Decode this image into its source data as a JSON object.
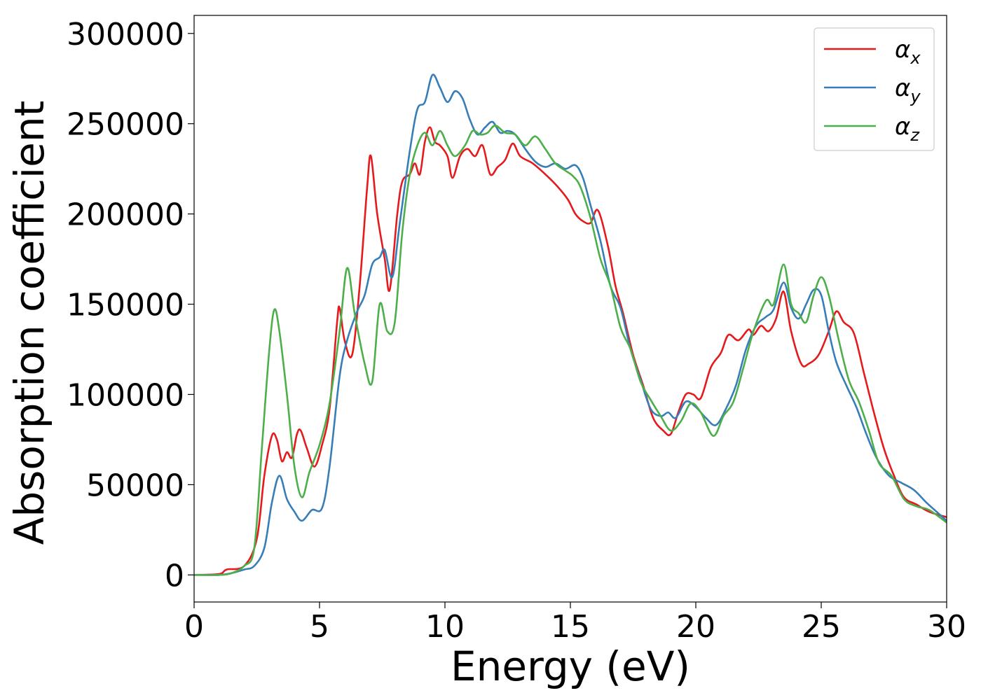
{
  "chart_data": {
    "type": "line",
    "xlabel": "Energy (eV)",
    "ylabel": "Absorption coefficient",
    "xlim": [
      0,
      30
    ],
    "ylim": [
      -15000,
      310000
    ],
    "x_ticks": [
      0,
      5,
      10,
      15,
      20,
      25,
      30
    ],
    "y_ticks": [
      0,
      50000,
      100000,
      150000,
      200000,
      250000,
      300000
    ],
    "x_tick_labels": [
      "0",
      "5",
      "10",
      "15",
      "20",
      "25",
      "30"
    ],
    "y_tick_labels": [
      "0",
      "50000",
      "100000",
      "150000",
      "200000",
      "250000",
      "300000"
    ],
    "grid": false,
    "legend_position": "top-right",
    "series": [
      {
        "name": "α_x",
        "legend_base": "α",
        "legend_sub": "x",
        "color": "#e41a1c",
        "points": [
          [
            0,
            0
          ],
          [
            1,
            500
          ],
          [
            1.3,
            3000
          ],
          [
            2,
            5000
          ],
          [
            2.5,
            20000
          ],
          [
            2.8,
            55000
          ],
          [
            3.1,
            77000
          ],
          [
            3.3,
            75000
          ],
          [
            3.5,
            63000
          ],
          [
            3.7,
            68000
          ],
          [
            3.9,
            65000
          ],
          [
            4.1,
            78000
          ],
          [
            4.25,
            80000
          ],
          [
            4.5,
            70000
          ],
          [
            4.8,
            60000
          ],
          [
            5.1,
            72000
          ],
          [
            5.4,
            92000
          ],
          [
            5.7,
            140000
          ],
          [
            5.8,
            148000
          ],
          [
            6.0,
            130000
          ],
          [
            6.3,
            122000
          ],
          [
            6.6,
            160000
          ],
          [
            6.9,
            215000
          ],
          [
            7.05,
            232000
          ],
          [
            7.3,
            200000
          ],
          [
            7.6,
            175000
          ],
          [
            7.8,
            158000
          ],
          [
            8.1,
            200000
          ],
          [
            8.3,
            218000
          ],
          [
            8.6,
            222000
          ],
          [
            8.8,
            228000
          ],
          [
            9.0,
            222000
          ],
          [
            9.2,
            240000
          ],
          [
            9.4,
            248000
          ],
          [
            9.6,
            240000
          ],
          [
            9.8,
            238000
          ],
          [
            10.1,
            232000
          ],
          [
            10.3,
            220000
          ],
          [
            10.6,
            232000
          ],
          [
            10.9,
            236000
          ],
          [
            11.2,
            232000
          ],
          [
            11.5,
            238000
          ],
          [
            11.8,
            222000
          ],
          [
            12.1,
            226000
          ],
          [
            12.4,
            230000
          ],
          [
            12.7,
            239000
          ],
          [
            13.0,
            232000
          ],
          [
            13.5,
            228000
          ],
          [
            14.0,
            222000
          ],
          [
            14.5,
            215000
          ],
          [
            14.9,
            208000
          ],
          [
            15.2,
            200000
          ],
          [
            15.5,
            196000
          ],
          [
            15.8,
            195000
          ],
          [
            16.1,
            202000
          ],
          [
            16.5,
            182000
          ],
          [
            16.8,
            160000
          ],
          [
            17.1,
            145000
          ],
          [
            17.5,
            122000
          ],
          [
            17.9,
            105000
          ],
          [
            18.3,
            87000
          ],
          [
            18.7,
            80000
          ],
          [
            19.0,
            78000
          ],
          [
            19.3,
            90000
          ],
          [
            19.6,
            100000
          ],
          [
            19.9,
            100000
          ],
          [
            20.2,
            98000
          ],
          [
            20.6,
            115000
          ],
          [
            21.0,
            123000
          ],
          [
            21.3,
            133000
          ],
          [
            21.7,
            130000
          ],
          [
            22.1,
            136000
          ],
          [
            22.3,
            133000
          ],
          [
            22.6,
            138000
          ],
          [
            22.9,
            135000
          ],
          [
            23.2,
            142000
          ],
          [
            23.5,
            157000
          ],
          [
            23.8,
            135000
          ],
          [
            24.2,
            117000
          ],
          [
            24.5,
            117000
          ],
          [
            24.9,
            122000
          ],
          [
            25.3,
            135000
          ],
          [
            25.6,
            146000
          ],
          [
            25.9,
            140000
          ],
          [
            26.3,
            134000
          ],
          [
            26.7,
            112000
          ],
          [
            27.1,
            90000
          ],
          [
            27.5,
            70000
          ],
          [
            27.9,
            55000
          ],
          [
            28.3,
            43000
          ],
          [
            28.8,
            39000
          ],
          [
            29.3,
            35000
          ],
          [
            30,
            32000
          ]
        ]
      },
      {
        "name": "α_y",
        "legend_base": "α",
        "legend_sub": "y",
        "color": "#377eb8",
        "points": [
          [
            0,
            0
          ],
          [
            1,
            0
          ],
          [
            1.5,
            1000
          ],
          [
            2,
            3000
          ],
          [
            2.4,
            5000
          ],
          [
            2.8,
            15000
          ],
          [
            3.1,
            40000
          ],
          [
            3.4,
            55000
          ],
          [
            3.7,
            42000
          ],
          [
            4.0,
            35000
          ],
          [
            4.3,
            30000
          ],
          [
            4.7,
            36000
          ],
          [
            5.1,
            37000
          ],
          [
            5.4,
            60000
          ],
          [
            5.8,
            110000
          ],
          [
            6.1,
            130000
          ],
          [
            6.5,
            146000
          ],
          [
            6.8,
            155000
          ],
          [
            7.1,
            172000
          ],
          [
            7.4,
            176000
          ],
          [
            7.6,
            180000
          ],
          [
            7.9,
            165000
          ],
          [
            8.2,
            195000
          ],
          [
            8.6,
            235000
          ],
          [
            8.9,
            258000
          ],
          [
            9.2,
            262000
          ],
          [
            9.5,
            277000
          ],
          [
            9.8,
            270000
          ],
          [
            10.1,
            262000
          ],
          [
            10.4,
            268000
          ],
          [
            10.7,
            264000
          ],
          [
            11.0,
            252000
          ],
          [
            11.3,
            244000
          ],
          [
            11.6,
            248000
          ],
          [
            11.9,
            251000
          ],
          [
            12.2,
            245000
          ],
          [
            12.5,
            246000
          ],
          [
            12.8,
            244000
          ],
          [
            13.2,
            236000
          ],
          [
            13.6,
            229000
          ],
          [
            14.0,
            226000
          ],
          [
            14.4,
            228000
          ],
          [
            14.8,
            225000
          ],
          [
            15.2,
            227000
          ],
          [
            15.5,
            220000
          ],
          [
            15.8,
            205000
          ],
          [
            16.2,
            185000
          ],
          [
            16.6,
            160000
          ],
          [
            17.0,
            148000
          ],
          [
            17.4,
            125000
          ],
          [
            17.8,
            108000
          ],
          [
            18.2,
            92000
          ],
          [
            18.6,
            88000
          ],
          [
            18.9,
            90000
          ],
          [
            19.2,
            87000
          ],
          [
            19.6,
            96000
          ],
          [
            20.0,
            93000
          ],
          [
            20.4,
            87000
          ],
          [
            20.8,
            83000
          ],
          [
            21.2,
            92000
          ],
          [
            21.6,
            105000
          ],
          [
            22.0,
            125000
          ],
          [
            22.4,
            138000
          ],
          [
            22.8,
            143000
          ],
          [
            23.1,
            147000
          ],
          [
            23.5,
            162000
          ],
          [
            23.8,
            148000
          ],
          [
            24.1,
            142000
          ],
          [
            24.4,
            150000
          ],
          [
            24.7,
            158000
          ],
          [
            25.0,
            155000
          ],
          [
            25.3,
            135000
          ],
          [
            25.6,
            118000
          ],
          [
            26.0,
            105000
          ],
          [
            26.4,
            93000
          ],
          [
            26.8,
            78000
          ],
          [
            27.2,
            65000
          ],
          [
            27.7,
            55000
          ],
          [
            28.2,
            51000
          ],
          [
            28.7,
            47000
          ],
          [
            29.2,
            40000
          ],
          [
            29.6,
            35000
          ],
          [
            30,
            30000
          ]
        ]
      },
      {
        "name": "α_z",
        "legend_base": "α",
        "legend_sub": "z",
        "color": "#4daf4a",
        "points": [
          [
            0,
            0
          ],
          [
            1,
            0
          ],
          [
            1.5,
            1000
          ],
          [
            2,
            5000
          ],
          [
            2.4,
            15000
          ],
          [
            2.7,
            70000
          ],
          [
            3.0,
            125000
          ],
          [
            3.2,
            147000
          ],
          [
            3.4,
            135000
          ],
          [
            3.7,
            100000
          ],
          [
            4.0,
            60000
          ],
          [
            4.3,
            43000
          ],
          [
            4.6,
            57000
          ],
          [
            5.0,
            72000
          ],
          [
            5.4,
            95000
          ],
          [
            5.8,
            135000
          ],
          [
            6.1,
            170000
          ],
          [
            6.4,
            145000
          ],
          [
            6.8,
            117000
          ],
          [
            7.1,
            107000
          ],
          [
            7.4,
            150000
          ],
          [
            7.7,
            135000
          ],
          [
            8.0,
            140000
          ],
          [
            8.3,
            190000
          ],
          [
            8.6,
            222000
          ],
          [
            8.9,
            238000
          ],
          [
            9.2,
            245000
          ],
          [
            9.5,
            238000
          ],
          [
            9.8,
            246000
          ],
          [
            10.1,
            238000
          ],
          [
            10.4,
            232000
          ],
          [
            10.8,
            238000
          ],
          [
            11.1,
            246000
          ],
          [
            11.4,
            244000
          ],
          [
            11.7,
            245000
          ],
          [
            12.0,
            249000
          ],
          [
            12.4,
            245000
          ],
          [
            12.8,
            244000
          ],
          [
            13.2,
            238000
          ],
          [
            13.6,
            243000
          ],
          [
            14.0,
            236000
          ],
          [
            14.4,
            228000
          ],
          [
            14.8,
            224000
          ],
          [
            15.1,
            221000
          ],
          [
            15.4,
            215000
          ],
          [
            15.8,
            198000
          ],
          [
            16.2,
            175000
          ],
          [
            16.6,
            160000
          ],
          [
            17.0,
            137000
          ],
          [
            17.4,
            125000
          ],
          [
            17.8,
            107000
          ],
          [
            18.2,
            97000
          ],
          [
            18.6,
            88000
          ],
          [
            19.0,
            80000
          ],
          [
            19.4,
            85000
          ],
          [
            19.8,
            95000
          ],
          [
            20.2,
            90000
          ],
          [
            20.7,
            77000
          ],
          [
            21.1,
            88000
          ],
          [
            21.5,
            96000
          ],
          [
            21.9,
            115000
          ],
          [
            22.3,
            135000
          ],
          [
            22.8,
            152000
          ],
          [
            23.1,
            150000
          ],
          [
            23.5,
            172000
          ],
          [
            23.8,
            150000
          ],
          [
            24.1,
            145000
          ],
          [
            24.4,
            140000
          ],
          [
            24.7,
            155000
          ],
          [
            25.0,
            165000
          ],
          [
            25.3,
            155000
          ],
          [
            25.7,
            130000
          ],
          [
            26.1,
            108000
          ],
          [
            26.5,
            96000
          ],
          [
            26.9,
            80000
          ],
          [
            27.3,
            62000
          ],
          [
            27.8,
            55000
          ],
          [
            28.3,
            42000
          ],
          [
            28.8,
            38000
          ],
          [
            29.3,
            36000
          ],
          [
            30,
            29000
          ]
        ]
      }
    ]
  }
}
